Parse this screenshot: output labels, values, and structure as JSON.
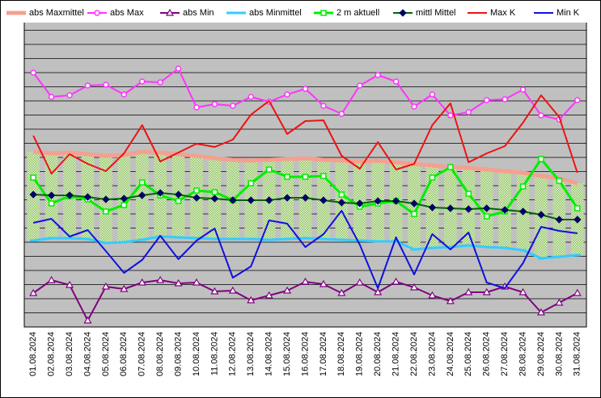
{
  "chart_data": {
    "type": "line",
    "categories": [
      "01.08.2024",
      "02.08.2024",
      "03.08.2024",
      "04.08.2024",
      "05.08.2024",
      "06.08.2024",
      "07.08.2024",
      "08.08.2024",
      "09.08.2024",
      "10.08.2024",
      "11.08.2024",
      "12.08.2024",
      "13.08.2024",
      "14.08.2024",
      "15.08.2024",
      "16.08.2024",
      "17.08.2024",
      "18.08.2024",
      "19.08.2024",
      "20.08.2024",
      "21.08.2024",
      "22.08.2024",
      "23.08.2024",
      "24.08.2024",
      "25.08.2024",
      "26.08.2024",
      "27.08.2024",
      "28.08.2024",
      "29.08.2024",
      "30.08.2024",
      "31.08.2024"
    ],
    "ylim": [
      0,
      385
    ],
    "yticks": [
      17.5,
      35,
      52.5,
      70,
      87.5,
      105,
      122.5,
      140,
      157.5,
      175,
      192.5,
      210,
      227.5,
      245,
      262.5,
      280,
      297.5,
      315,
      332.5,
      350,
      367.5
    ],
    "grid": true,
    "range_fill": "#b5d99c",
    "series": [
      {
        "name": "abs Maxmittel",
        "color": "#f4a090",
        "marker": "none",
        "width": 5,
        "values": [
          217,
          215,
          216,
          214,
          212,
          213,
          217,
          216,
          214,
          212,
          209,
          207,
          206,
          207,
          208,
          209,
          207,
          206,
          205,
          206,
          204,
          202,
          200,
          198,
          197,
          195,
          193,
          191,
          187,
          184,
          178
        ]
      },
      {
        "name": "abs Max",
        "color": "#ff33ff",
        "marker": "circle",
        "width": 2,
        "values": [
          315,
          285,
          287,
          299,
          300,
          288,
          304,
          303,
          320,
          272,
          276,
          274,
          285,
          279,
          288,
          295,
          274,
          264,
          299,
          312,
          304,
          273,
          288,
          262,
          266,
          281,
          282,
          294,
          262,
          257,
          281
        ]
      },
      {
        "name": "abs Min",
        "color": "#800080",
        "marker": "triangle",
        "width": 2,
        "values": [
          42,
          58,
          52,
          8,
          50,
          47,
          55,
          58,
          54,
          55,
          44,
          45,
          33,
          39,
          45,
          56,
          53,
          42,
          55,
          43,
          56,
          49,
          39,
          32,
          43,
          43,
          50,
          43,
          18,
          30,
          42
        ]
      },
      {
        "name": "abs Minmittel",
        "color": "#33ccff",
        "marker": "dash",
        "width": 3,
        "values": [
          107,
          110,
          110,
          109,
          104,
          105,
          108,
          112,
          111,
          110,
          109,
          109,
          109,
          108,
          109,
          110,
          109,
          108,
          107,
          106,
          106,
          96,
          98,
          99,
          101,
          99,
          98,
          95,
          85,
          87,
          89
        ]
      },
      {
        "name": "2 m aktuell",
        "color": "#00ee00",
        "marker": "square",
        "width": 3,
        "values": [
          185,
          153,
          162,
          158,
          143,
          151,
          179,
          163,
          156,
          169,
          167,
          157,
          178,
          195,
          186,
          186,
          187,
          164,
          149,
          153,
          156,
          140,
          185,
          198,
          165,
          137,
          143,
          174,
          208,
          181,
          147
        ]
      },
      {
        "name": "mittl Mittel",
        "color": "#006600",
        "marker": "diamond",
        "width": 2,
        "values": [
          164,
          163,
          163,
          161,
          158,
          159,
          163,
          166,
          164,
          160,
          159,
          157,
          157,
          157,
          160,
          160,
          157,
          154,
          153,
          156,
          156,
          153,
          148,
          147,
          146,
          147,
          145,
          143,
          139,
          133,
          133
        ]
      },
      {
        "name": "Max K",
        "color": "#ee1111",
        "marker": "none",
        "width": 2,
        "values": [
          237,
          190,
          214,
          202,
          193,
          215,
          250,
          205,
          216,
          227,
          223,
          232,
          263,
          280,
          239,
          255,
          256,
          212,
          196,
          229,
          195,
          202,
          250,
          277,
          204,
          215,
          224,
          253,
          287,
          260,
          191
        ]
      },
      {
        "name": "Min K",
        "color": "#1111dd",
        "marker": "none",
        "width": 2,
        "values": [
          129,
          134,
          112,
          120,
          94,
          67,
          83,
          113,
          84,
          107,
          122,
          61,
          75,
          132,
          128,
          99,
          115,
          144,
          102,
          48,
          111,
          65,
          115,
          96,
          117,
          55,
          48,
          79,
          124,
          119,
          116
        ]
      }
    ]
  }
}
